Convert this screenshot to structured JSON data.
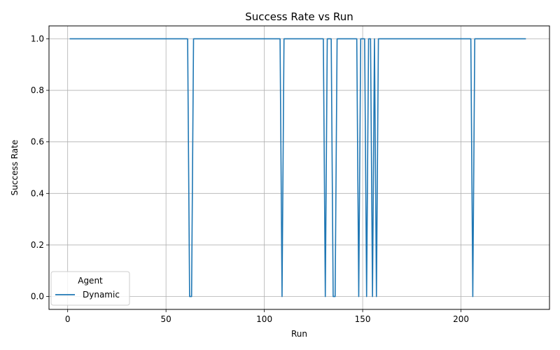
{
  "chart_data": {
    "type": "line",
    "title": "Success Rate vs Run",
    "xlabel": "Run",
    "ylabel": "Success Rate",
    "xlim": [
      -9.5,
      245
    ],
    "ylim": [
      -0.05,
      1.05
    ],
    "grid": true,
    "x_ticks": [
      0,
      50,
      100,
      150,
      200
    ],
    "x_tick_labels": [
      "0",
      "50",
      "100",
      "150",
      "200"
    ],
    "y_ticks": [
      0.0,
      0.2,
      0.4,
      0.6,
      0.8,
      1.0
    ],
    "y_tick_labels": [
      "0.0",
      "0.2",
      "0.4",
      "0.6",
      "0.8",
      "1.0"
    ],
    "legend": {
      "title": "Agent",
      "position": "lower-left"
    },
    "series": [
      {
        "name": "Dynamic",
        "color": "#1f77b4",
        "x": [
          1,
          61,
          62,
          63,
          64,
          108,
          109,
          110,
          130,
          131,
          132,
          134,
          135,
          136,
          137,
          147,
          148,
          149,
          151,
          152,
          153,
          154,
          155,
          156,
          157,
          158,
          205,
          206,
          207,
          233
        ],
        "y": [
          1,
          1,
          0,
          0,
          1,
          1,
          0,
          1,
          1,
          0,
          1,
          1,
          0,
          0,
          1,
          1,
          0,
          1,
          1,
          0,
          1,
          1,
          0,
          1,
          0,
          1,
          1,
          0,
          1,
          1
        ]
      }
    ]
  }
}
